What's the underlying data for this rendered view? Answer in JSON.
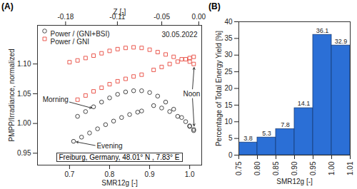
{
  "chart_data": [
    {
      "type": "scatter",
      "title": "(A)",
      "x_label": "SMR12g [-]",
      "y_label": "PMPP/Irradiance, normalized",
      "x2_label": "Z [-]",
      "xlim": [
        0.62,
        1.03
      ],
      "xticks": [
        0.7,
        0.8,
        0.9,
        {
          "value": 1,
          "label": "1.0"
        }
      ],
      "x2lim": [
        -0.218,
        0.004
      ],
      "x2ticks": [
        {
          "value": -0.18,
          "label": "-0.18"
        },
        {
          "value": -0.11,
          "label": "-0.11"
        },
        {
          "value": -0.05,
          "label": "-0.05"
        },
        {
          "value": 0,
          "label": "0.00"
        }
      ],
      "ylim": [
        0.93,
        1.165
      ],
      "yticks": [
        {
          "value": 0.95,
          "label": "0.95"
        },
        {
          "value": 1,
          "label": "1.00"
        },
        {
          "value": 1.05,
          "label": "1.05"
        },
        {
          "value": 1.1,
          "label": "1.10"
        }
      ],
      "legend": "top-left",
      "annotations": [
        {
          "text": "Morning"
        },
        {
          "text": "Evening"
        },
        {
          "text": "Noon"
        },
        {
          "text": "30.05.2022"
        },
        {
          "text": "Freiburg, Germany, 48.01° N , 7.83° E"
        }
      ],
      "series": [
        {
          "name": "Power / (GNI+BSI)",
          "color": "#333333",
          "marker": "circle",
          "x": [
            0.72,
            0.74,
            0.76,
            0.78,
            0.8,
            0.82,
            0.84,
            0.86,
            0.88,
            0.9,
            0.92,
            0.94,
            0.96,
            0.98,
            1.0,
            1.01,
            0.71,
            0.73,
            0.75,
            0.77,
            0.79,
            0.81,
            0.83,
            0.85,
            0.87,
            0.88,
            0.91,
            0.93,
            0.95,
            0.97,
            0.99,
            1.0,
            1.01
          ],
          "values": [
            1.012,
            1.02,
            1.028,
            1.036,
            1.043,
            1.049,
            1.053,
            1.055,
            1.055,
            1.052,
            1.046,
            1.036,
            1.024,
            1.01,
            0.996,
            0.99,
            0.97,
            0.977,
            0.984,
            0.991,
            0.998,
            1.004,
            1.01,
            1.015,
            1.019,
            1.021,
            1.03,
            1.026,
            1.02,
            1.012,
            1.003,
            0.995,
            0.988
          ]
        },
        {
          "name": "Power / GNI",
          "color": "#e8473d",
          "marker": "square",
          "x": [
            0.7,
            0.72,
            0.74,
            0.76,
            0.78,
            0.8,
            0.82,
            0.84,
            0.86,
            0.88,
            0.9,
            0.92,
            0.94,
            0.96,
            0.98,
            1.0,
            1.01,
            0.72,
            0.74,
            0.76,
            0.78,
            0.8,
            0.82,
            0.84,
            0.86,
            0.88,
            0.91,
            0.93,
            0.95,
            0.97,
            0.99,
            1.0,
            1.01
          ],
          "values": [
            1.103,
            1.106,
            1.11,
            1.114,
            1.118,
            1.122,
            1.125,
            1.127,
            1.128,
            1.127,
            1.124,
            1.12,
            1.116,
            1.112,
            1.108,
            1.104,
            1.1,
            1.04,
            1.047,
            1.054,
            1.06,
            1.066,
            1.071,
            1.075,
            1.079,
            1.082,
            1.09,
            1.095,
            1.1,
            1.104,
            1.108,
            1.11,
            1.112
          ]
        }
      ]
    },
    {
      "type": "histogram",
      "title": "(B)",
      "x_label": "SMR12g [-]",
      "y_label": "Percentage of Total Energy Yield [%]",
      "bins": [
        0.75,
        0.8,
        0.85,
        0.9,
        0.95,
        1.0,
        1.01
      ],
      "values": [
        3.8,
        5.3,
        7.8,
        14.1,
        36.1,
        32.9
      ],
      "xticks": [
        {
          "value": 0.75,
          "label": "0.75"
        },
        {
          "value": 0.8,
          "label": "0.80"
        },
        {
          "value": 0.85,
          "label": "0.85"
        },
        {
          "value": 0.9,
          "label": "0.90"
        },
        {
          "value": 0.95,
          "label": "0.95"
        },
        {
          "value": 1,
          "label": "1.00"
        },
        {
          "value": 1.01,
          "label": "1.01"
        }
      ],
      "ylim": [
        0,
        40
      ],
      "yticks": [
        0,
        5,
        10,
        15,
        20,
        25,
        30,
        35,
        40
      ],
      "color": "#2b6fd6",
      "data_labels": true
    }
  ]
}
